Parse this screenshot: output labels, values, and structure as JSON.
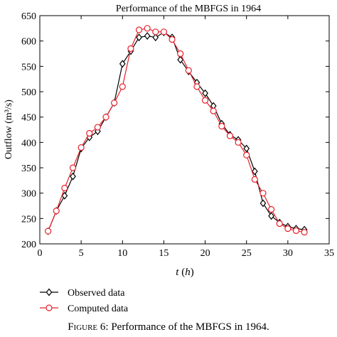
{
  "chart_data": {
    "type": "line",
    "title": "Performance of the MBFGS in 1964",
    "xlabel_var": "t",
    "xlabel_unit": "h",
    "ylabel": "Outflow (m³/s)",
    "xlim": [
      0,
      35
    ],
    "ylim": [
      200,
      650
    ],
    "xticks": [
      0,
      5,
      10,
      15,
      20,
      25,
      30,
      35
    ],
    "yticks": [
      200,
      250,
      300,
      350,
      400,
      450,
      500,
      550,
      600,
      650
    ],
    "grid": false,
    "legend_placement": "below-left",
    "series": [
      {
        "name": "Observed data",
        "color": "#000000",
        "marker": "diamond",
        "x": [
          1,
          2,
          3,
          4,
          5,
          6,
          7,
          8,
          9,
          10,
          11,
          12,
          13,
          14,
          15,
          16,
          17,
          18,
          19,
          20,
          21,
          22,
          23,
          24,
          25,
          26,
          27,
          28,
          29,
          30,
          31,
          32
        ],
        "y": [
          225,
          265,
          295,
          333,
          388,
          410,
          422,
          450,
          478,
          555,
          580,
          607,
          610,
          607,
          617,
          607,
          563,
          540,
          518,
          497,
          472,
          437,
          415,
          405,
          388,
          343,
          280,
          255,
          242,
          234,
          230,
          228
        ]
      },
      {
        "name": "Computed data",
        "color": "#e8202a",
        "marker": "circle",
        "x": [
          1,
          2,
          3,
          4,
          5,
          6,
          7,
          8,
          9,
          10,
          11,
          12,
          13,
          14,
          15,
          16,
          17,
          18,
          19,
          20,
          21,
          22,
          23,
          24,
          25,
          26,
          27,
          28,
          29,
          30,
          31,
          32
        ],
        "y": [
          225,
          265,
          310,
          350,
          390,
          418,
          430,
          450,
          478,
          510,
          585,
          622,
          625,
          618,
          618,
          603,
          575,
          542,
          510,
          483,
          462,
          432,
          413,
          400,
          375,
          327,
          300,
          268,
          240,
          230,
          226,
          223
        ]
      }
    ]
  },
  "caption": {
    "figure_label": "Figure 6:",
    "text": "Performance of the MBFGS in 1964."
  }
}
